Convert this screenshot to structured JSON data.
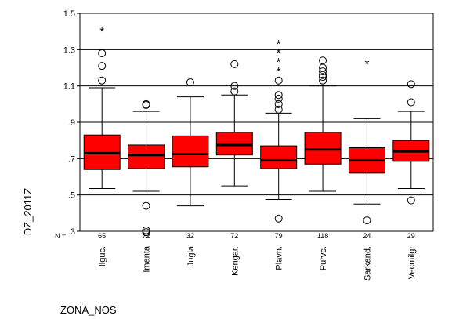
{
  "chart_data": {
    "type": "boxplot",
    "ylabel": "DZ_2011Z",
    "xlabel": "ZONA_NOS",
    "n_label": "N =",
    "ylim": [
      0.3,
      1.5
    ],
    "yticks": [
      1.5,
      1.3,
      1.1,
      0.9,
      0.7,
      0.5,
      0.3
    ],
    "ytick_labels": [
      "1.5",
      "1.3",
      "1.1",
      ".9",
      ".7",
      ".5",
      ".3"
    ],
    "grid": true,
    "box_color": "#ff0000",
    "median_color": "#000000",
    "categories": [
      "Ilguc.",
      "Imanta",
      "Jugla",
      "Kengar.",
      "Plavn.",
      "Purvc.",
      "Sarkand.",
      "Vecmilgr"
    ],
    "n": [
      "65",
      "72",
      "32",
      "72",
      "79",
      "118",
      "24",
      "29"
    ],
    "boxes": [
      {
        "whisker_low": 0.535,
        "q1": 0.64,
        "median": 0.73,
        "q3": 0.83,
        "whisker_high": 1.09,
        "outliers": [
          1.13,
          1.21,
          1.28
        ],
        "extremes": [
          1.41
        ]
      },
      {
        "whisker_low": 0.52,
        "q1": 0.645,
        "median": 0.72,
        "q3": 0.775,
        "whisker_high": 0.96,
        "outliers": [
          0.995,
          1.0,
          0.44,
          0.305,
          0.295
        ],
        "extremes": []
      },
      {
        "whisker_low": 0.44,
        "q1": 0.655,
        "median": 0.725,
        "q3": 0.825,
        "whisker_high": 1.04,
        "outliers": [
          1.12
        ],
        "extremes": []
      },
      {
        "whisker_low": 0.55,
        "q1": 0.72,
        "median": 0.775,
        "q3": 0.845,
        "whisker_high": 1.05,
        "outliers": [
          1.07,
          1.1,
          1.22
        ],
        "extremes": []
      },
      {
        "whisker_low": 0.475,
        "q1": 0.645,
        "median": 0.69,
        "q3": 0.77,
        "whisker_high": 0.95,
        "outliers": [
          0.97,
          1.0,
          1.03,
          1.05,
          1.13,
          0.37
        ],
        "extremes": [
          1.19,
          1.24,
          1.29,
          1.34
        ]
      },
      {
        "whisker_low": 0.52,
        "q1": 0.67,
        "median": 0.75,
        "q3": 0.845,
        "whisker_high": 1.1,
        "outliers": [
          1.13,
          1.15,
          1.16,
          1.18,
          1.2,
          1.24
        ],
        "extremes": []
      },
      {
        "whisker_low": 0.45,
        "q1": 0.62,
        "median": 0.69,
        "q3": 0.76,
        "whisker_high": 0.92,
        "outliers": [
          0.36
        ],
        "extremes": [
          1.23
        ]
      },
      {
        "whisker_low": 0.535,
        "q1": 0.685,
        "median": 0.74,
        "q3": 0.8,
        "whisker_high": 0.96,
        "outliers": [
          1.01,
          1.11,
          0.47
        ],
        "extremes": []
      }
    ]
  }
}
